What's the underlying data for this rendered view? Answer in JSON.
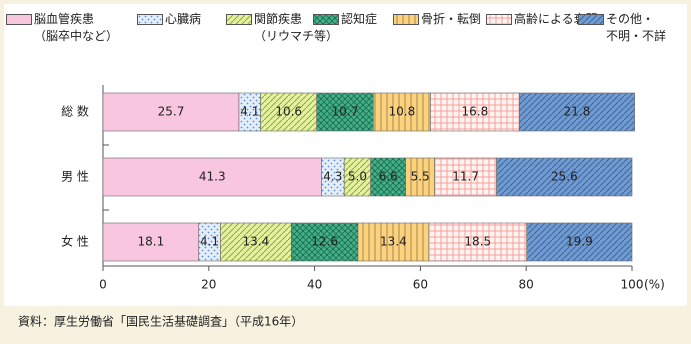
{
  "chart_data": {
    "type": "stacked-barh",
    "categories": [
      "総 数",
      "男 性",
      "女 性"
    ],
    "series": [
      {
        "name": "脳血管疾患\n（脳卒中など）",
        "color": "#f9c6e0",
        "pattern": "solid",
        "values": [
          25.7,
          41.3,
          18.1
        ]
      },
      {
        "name": "心臓病",
        "color": "#5b8fd6",
        "pattern": "dots",
        "values": [
          4.1,
          4.3,
          4.1
        ]
      },
      {
        "name": "関節疾患\n（リウマチ等）",
        "color": "#e4f39a",
        "pattern": "diag",
        "values": [
          10.6,
          5.0,
          13.4
        ],
        "value_labels": [
          "10.6",
          "5.0",
          "13.4"
        ]
      },
      {
        "name": "認知症",
        "color": "#3fb48a",
        "pattern": "cross",
        "values": [
          10.7,
          6.6,
          12.6
        ]
      },
      {
        "name": "骨折・転倒",
        "color": "#fcd27e",
        "pattern": "vert",
        "values": [
          10.8,
          5.5,
          13.4
        ]
      },
      {
        "name": "高齢による衰弱",
        "color": "#f3a0a0",
        "pattern": "grid",
        "values": [
          16.8,
          11.7,
          18.5
        ]
      },
      {
        "name": "その他・\n不明・不詳",
        "color": "#6f9bd4",
        "pattern": "diag2",
        "values": [
          21.8,
          25.6,
          19.9
        ]
      }
    ],
    "xlim": [
      0,
      100
    ],
    "xticks": [
      0,
      20,
      40,
      60,
      80,
      100
    ],
    "x_unit": "(%)",
    "source": "資料：厚生労働省「国民生活基礎調査」（平成16年）"
  }
}
